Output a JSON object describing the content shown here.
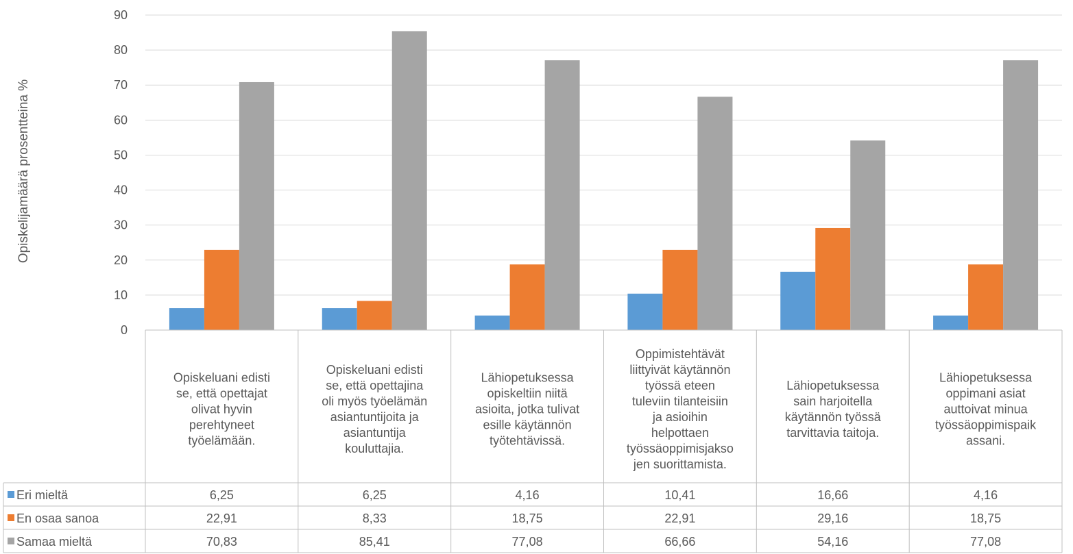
{
  "chart_data": {
    "type": "bar",
    "title": "",
    "xlabel": "",
    "ylabel": "Opiskelijamäärä prosentteina %",
    "ylim": [
      0,
      90
    ],
    "yticks": [
      0,
      10,
      20,
      30,
      40,
      50,
      60,
      70,
      80,
      90
    ],
    "grid": true,
    "legend": "data-table-left",
    "categories": [
      [
        "Opiskeluani edisti",
        "se, että opettajat",
        "olivat hyvin",
        "perehtyneet",
        "työelämään."
      ],
      [
        "Opiskeluani edisti",
        "se, että opettajina",
        "oli myös työelämän",
        "asiantuntijoita ja",
        "asiantuntija",
        "kouluttajia."
      ],
      [
        "Lähiopetuksessa",
        "opiskeltiin niitä",
        "asioita, jotka tulivat",
        "esille käytännön",
        "työtehtävissä."
      ],
      [
        "Oppimistehtävät",
        "liittyivät käytännön",
        "työssä eteen",
        "tuleviin tilanteisiin",
        "ja asioihin",
        "helpottaen",
        "työssäoppimisjakso",
        "jen suorittamista."
      ],
      [
        "Lähiopetuksessa",
        "sain harjoitella",
        "käytännön työssä",
        "tarvittavia taitoja."
      ],
      [
        "Lähiopetuksessa",
        "oppimani asiat",
        "auttoivat minua",
        "työssäoppimispaik",
        "assani."
      ]
    ],
    "series": [
      {
        "name": "Eri mieltä",
        "color": "#5B9BD5",
        "values": [
          6.25,
          6.25,
          4.16,
          10.41,
          16.66,
          4.16
        ],
        "labels": [
          "6,25",
          "6,25",
          "4,16",
          "10,41",
          "16,66",
          "4,16"
        ]
      },
      {
        "name": "En osaa sanoa",
        "color": "#ED7D31",
        "values": [
          22.91,
          8.33,
          18.75,
          22.91,
          29.16,
          18.75
        ],
        "labels": [
          "22,91",
          "8,33",
          "18,75",
          "22,91",
          "29,16",
          "18,75"
        ]
      },
      {
        "name": "Samaa mieltä",
        "color": "#A5A5A5",
        "values": [
          70.83,
          85.41,
          77.08,
          66.66,
          54.16,
          77.08
        ],
        "labels": [
          "70,83",
          "85,41",
          "77,08",
          "66,66",
          "54,16",
          "77,08"
        ]
      }
    ]
  }
}
